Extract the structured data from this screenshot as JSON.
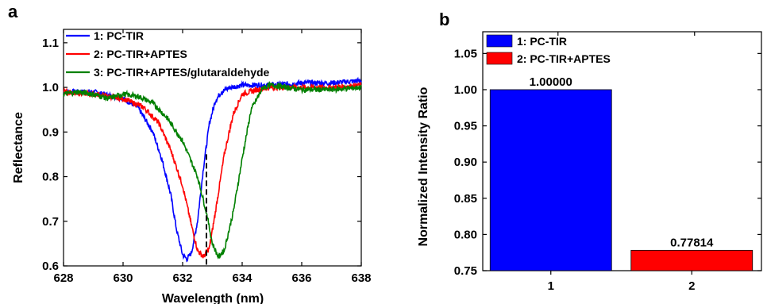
{
  "panels": {
    "a": "a",
    "b": "b"
  },
  "chart_data": [
    {
      "type": "line",
      "panel": "a",
      "xlabel": "Wavelength (nm)",
      "ylabel": "Reflectance",
      "xlim": [
        628,
        638
      ],
      "ylim": [
        0.6,
        1.13
      ],
      "xticks": [
        "628",
        "630",
        "632",
        "634",
        "636",
        "638"
      ],
      "yticks": [
        "0.6",
        "0.7",
        "0.8",
        "0.9",
        "1.0",
        "1.1"
      ],
      "legend_position": "top-left",
      "series": [
        {
          "name": "1: PC-TIR",
          "color": "#0000ff",
          "x": [
            628,
            629,
            630,
            630.5,
            631,
            631.3,
            631.6,
            631.8,
            632,
            632.15,
            632.3,
            632.5,
            632.7,
            632.9,
            633.1,
            633.3,
            633.6,
            634,
            635,
            636,
            637,
            638
          ],
          "y": [
            0.99,
            0.99,
            0.975,
            0.955,
            0.9,
            0.84,
            0.76,
            0.68,
            0.625,
            0.615,
            0.63,
            0.7,
            0.82,
            0.92,
            0.97,
            0.99,
            1.0,
            1.005,
            1.005,
            1.01,
            1.01,
            1.015
          ]
        },
        {
          "name": "2: PC-TIR+APTES",
          "color": "#ff0000",
          "x": [
            628,
            629,
            630,
            630.7,
            631.2,
            631.6,
            632,
            632.3,
            632.5,
            632.7,
            632.9,
            633.1,
            633.4,
            633.7,
            634,
            634.5,
            635,
            636,
            637,
            638
          ],
          "y": [
            0.99,
            0.985,
            0.975,
            0.955,
            0.92,
            0.86,
            0.78,
            0.69,
            0.635,
            0.62,
            0.64,
            0.72,
            0.85,
            0.94,
            0.985,
            0.995,
            1.0,
            1.0,
            1.0,
            1.005
          ]
        },
        {
          "name": "3: PC-TIR+APTES/glutaraldehyde",
          "color": "#008000",
          "x": [
            628,
            628.5,
            629,
            629.5,
            630,
            630.5,
            631,
            631.5,
            632,
            632.5,
            632.8,
            633,
            633.2,
            633.4,
            633.7,
            634,
            634.3,
            634.7,
            635,
            636,
            637,
            638
          ],
          "y": [
            0.985,
            0.99,
            0.985,
            0.975,
            0.985,
            0.98,
            0.965,
            0.93,
            0.88,
            0.8,
            0.72,
            0.65,
            0.62,
            0.635,
            0.72,
            0.84,
            0.95,
            1.0,
            1.005,
            0.995,
            0.995,
            1.0
          ]
        }
      ],
      "annotations": [
        {
          "type": "dashed-vline",
          "x": 632.8,
          "y_from": 0.6,
          "y_to": 0.85,
          "color": "#000000"
        }
      ]
    },
    {
      "type": "bar",
      "panel": "b",
      "xlabel": "",
      "ylabel": "Normalized Intensity Ratio",
      "categories": [
        "1",
        "2"
      ],
      "values": [
        1.0,
        0.77814
      ],
      "value_labels": [
        "1.00000",
        "0.77814"
      ],
      "ylim": [
        0.75,
        1.08
      ],
      "yticks": [
        "0.75",
        "0.80",
        "0.85",
        "0.90",
        "0.95",
        "1.00",
        "1.05"
      ],
      "legend_position": "top-left",
      "series": [
        {
          "name": "1: PC-TIR",
          "color": "#0000ff"
        },
        {
          "name": "2: PC-TIR+APTES",
          "color": "#ff0000"
        }
      ]
    }
  ]
}
